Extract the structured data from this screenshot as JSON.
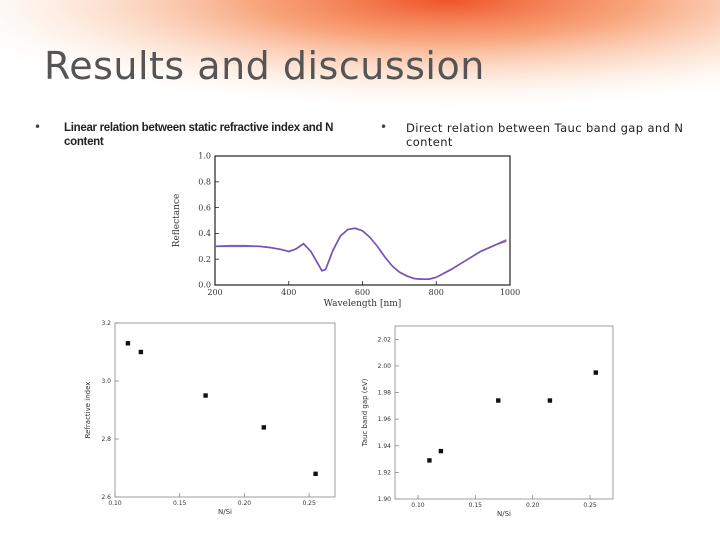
{
  "slide": {
    "title": "Results and discussion",
    "bullets": [
      {
        "marker": "•",
        "text": "Linear relation between static refractive index and N content"
      },
      {
        "marker": "•",
        "text": "Direct relation between Tauc band gap and N content"
      }
    ],
    "colors": {
      "accent_glow": "#f26a3a",
      "title": "#555555"
    }
  },
  "chart_data": [
    {
      "type": "line",
      "xlabel": "Wavelength [nm]",
      "ylabel": "Reflectance",
      "xlim": [
        200,
        1000
      ],
      "ylim": [
        0.0,
        1.0
      ],
      "xticks": [
        200,
        400,
        600,
        800,
        1000
      ],
      "yticks": [
        0.0,
        0.2,
        0.4,
        0.6,
        0.8,
        1.0
      ],
      "series": [
        {
          "color": "#d8304a",
          "x": [
            200,
            240,
            280,
            320,
            350,
            380,
            400,
            420,
            440,
            460,
            480,
            490,
            500,
            520,
            540,
            560,
            580,
            600,
            620,
            640,
            660,
            680,
            700,
            720,
            740,
            760,
            780,
            800,
            840,
            880,
            920,
            960,
            990
          ],
          "y": [
            0.3,
            0.305,
            0.305,
            0.3,
            0.29,
            0.275,
            0.26,
            0.28,
            0.32,
            0.26,
            0.16,
            0.11,
            0.12,
            0.27,
            0.38,
            0.43,
            0.44,
            0.42,
            0.37,
            0.3,
            0.22,
            0.15,
            0.1,
            0.07,
            0.05,
            0.045,
            0.045,
            0.06,
            0.12,
            0.19,
            0.26,
            0.31,
            0.34
          ]
        },
        {
          "color": "#5a58c8",
          "x": [
            200,
            240,
            280,
            320,
            350,
            380,
            400,
            420,
            440,
            460,
            480,
            490,
            500,
            520,
            540,
            560,
            580,
            600,
            620,
            640,
            660,
            680,
            700,
            720,
            740,
            760,
            780,
            800,
            840,
            880,
            920,
            960,
            990
          ],
          "y": [
            0.3,
            0.3,
            0.3,
            0.3,
            0.29,
            0.275,
            0.26,
            0.28,
            0.32,
            0.26,
            0.16,
            0.11,
            0.12,
            0.27,
            0.38,
            0.43,
            0.44,
            0.42,
            0.37,
            0.3,
            0.22,
            0.15,
            0.1,
            0.07,
            0.05,
            0.045,
            0.045,
            0.06,
            0.12,
            0.19,
            0.26,
            0.31,
            0.35
          ]
        }
      ]
    },
    {
      "type": "scatter",
      "xlabel": "N/Si",
      "ylabel": "Refractive index",
      "xlim": [
        0.1,
        0.27
      ],
      "ylim": [
        2.6,
        3.2
      ],
      "xticks": [
        "0.10",
        "0.15",
        "0.20",
        "0.25"
      ],
      "yticks": [
        "2.6",
        "2.8",
        "3.0",
        "3.2"
      ],
      "x": [
        0.11,
        0.12,
        0.17,
        0.215,
        0.255
      ],
      "y": [
        3.13,
        3.1,
        2.95,
        2.84,
        2.68
      ]
    },
    {
      "type": "scatter",
      "xlabel": "N/Si",
      "ylabel": "Tauc band gap (eV)",
      "xlim": [
        0.08,
        0.27
      ],
      "ylim": [
        1.9,
        2.03
      ],
      "xticks": [
        "0.10",
        "0.15",
        "0.20",
        "0.25"
      ],
      "yticks": [
        "1.90",
        "1.92",
        "1.94",
        "1.96",
        "1.98",
        "2.00",
        "2.02"
      ],
      "x": [
        0.11,
        0.12,
        0.17,
        0.215,
        0.255
      ],
      "y": [
        1.929,
        1.936,
        1.974,
        1.974,
        1.995
      ]
    }
  ]
}
